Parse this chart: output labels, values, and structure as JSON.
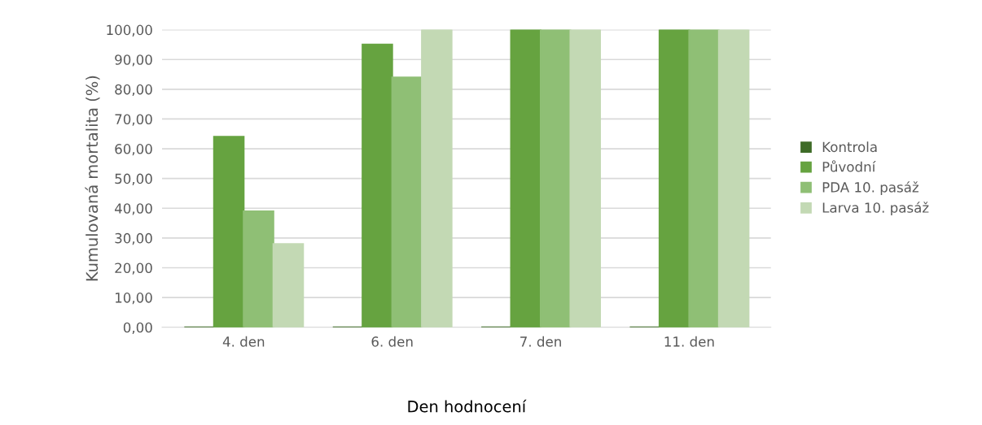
{
  "chart_data": {
    "type": "bar",
    "xlabel": "Den hodnocení",
    "ylabel": "Kumulovaná mortalita (%)",
    "categories": [
      "4. den",
      "6. den",
      "7. den",
      "11. den"
    ],
    "series": [
      {
        "name": "Kontrola",
        "color": "#3e6b27",
        "values": [
          0,
          0,
          0,
          0
        ]
      },
      {
        "name": "Původní",
        "color": "#66a340",
        "values": [
          64,
          95,
          100,
          100
        ]
      },
      {
        "name": "PDA 10. pasáž",
        "color": "#8fbf75",
        "values": [
          39,
          84,
          100,
          100
        ]
      },
      {
        "name": "Larva 10. pasáž",
        "color": "#c3d9b4",
        "values": [
          28,
          100,
          100,
          100
        ]
      }
    ],
    "ylim": [
      0,
      100
    ],
    "yticks": [
      {
        "value": 0,
        "label": "0,00"
      },
      {
        "value": 10,
        "label": "10,00"
      },
      {
        "value": 20,
        "label": "20,00"
      },
      {
        "value": 30,
        "label": "30,00"
      },
      {
        "value": 40,
        "label": "40,00"
      },
      {
        "value": 50,
        "label": "50,00"
      },
      {
        "value": 60,
        "label": "60,00"
      },
      {
        "value": 70,
        "label": "70,00"
      },
      {
        "value": 80,
        "label": "80,00"
      },
      {
        "value": 90,
        "label": "90,00"
      },
      {
        "value": 100,
        "label": "100,00"
      }
    ],
    "grid": "y",
    "legend": "right"
  }
}
